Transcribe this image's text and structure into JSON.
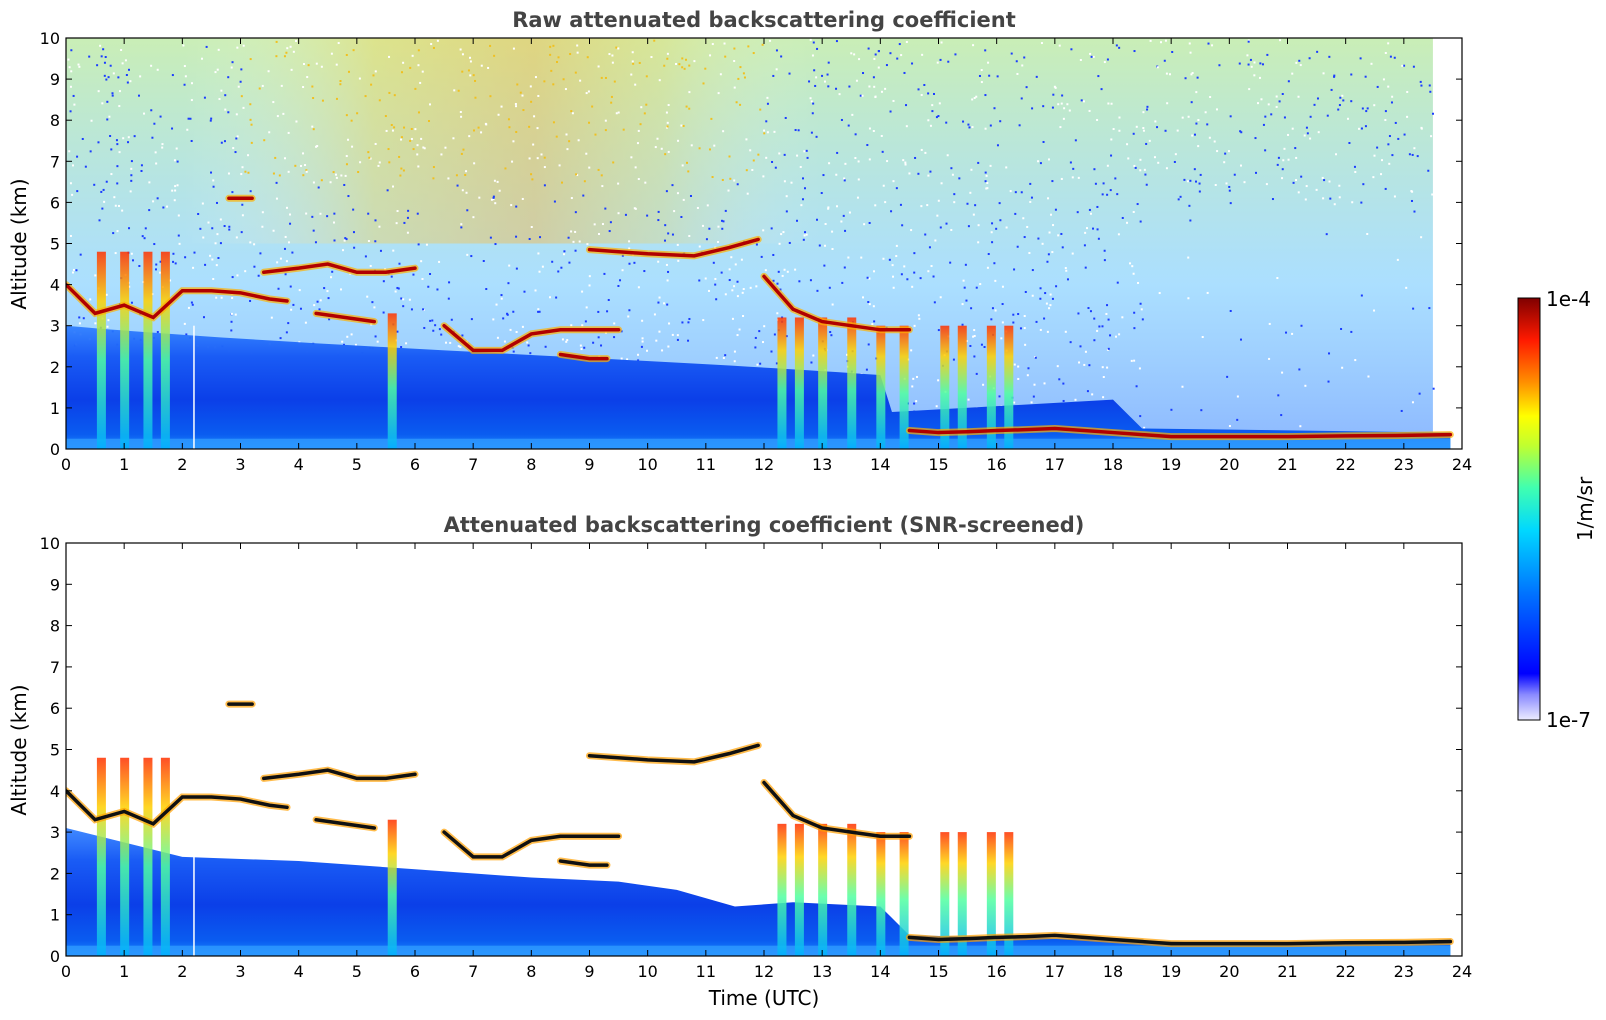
{
  "chart_data": [
    {
      "type": "heatmap",
      "title": "Raw attenuated backscattering coefficient",
      "xlabel": "",
      "ylabel": "Altitude (km)",
      "xlim": [
        0,
        24
      ],
      "ylim": [
        0,
        10
      ],
      "xticks": [
        "0",
        "1",
        "2",
        "3",
        "4",
        "5",
        "6",
        "7",
        "8",
        "9",
        "10",
        "11",
        "12",
        "13",
        "14",
        "15",
        "16",
        "17",
        "18",
        "19",
        "20",
        "21",
        "22",
        "23",
        "24"
      ],
      "yticks": [
        "0",
        "1",
        "2",
        "3",
        "4",
        "5",
        "6",
        "7",
        "8",
        "9",
        "10"
      ],
      "screened": false,
      "layers": [
        {
          "x": [
            0.0,
            0.5,
            1.0,
            1.5,
            2.0,
            2.5,
            3.0,
            3.5,
            3.8
          ],
          "y": [
            4.0,
            3.3,
            3.5,
            3.2,
            3.85,
            3.85,
            3.8,
            3.65,
            3.6
          ]
        },
        {
          "x": [
            3.4,
            4.0,
            4.5,
            5.0,
            5.5,
            6.0
          ],
          "y": [
            4.3,
            4.4,
            4.5,
            4.3,
            4.3,
            4.4
          ]
        },
        {
          "x": [
            4.3,
            4.8,
            5.3
          ],
          "y": [
            3.3,
            3.2,
            3.1
          ]
        },
        {
          "x": [
            6.5,
            7.0,
            7.5,
            8.0,
            8.5,
            9.0,
            9.5
          ],
          "y": [
            3.0,
            2.4,
            2.4,
            2.8,
            2.9,
            2.9,
            2.9
          ]
        },
        {
          "x": [
            8.5,
            9.0,
            9.3
          ],
          "y": [
            2.3,
            2.2,
            2.2
          ]
        },
        {
          "x": [
            2.8,
            3.2
          ],
          "y": [
            6.1,
            6.1
          ]
        },
        {
          "x": [
            9.0,
            10.0,
            10.8,
            11.4,
            11.9
          ],
          "y": [
            4.85,
            4.75,
            4.7,
            4.9,
            5.1
          ]
        },
        {
          "x": [
            12.0,
            12.5,
            13.0,
            13.5,
            14.0,
            14.5
          ],
          "y": [
            4.2,
            3.4,
            3.1,
            3.0,
            2.9,
            2.9
          ]
        },
        {
          "x": [
            14.5,
            15.0,
            15.5,
            16.0,
            16.5,
            17.0,
            17.5,
            18.0,
            18.5,
            19.0,
            19.5,
            20.0,
            21.0,
            22.0,
            23.0,
            23.8
          ],
          "y": [
            0.45,
            0.4,
            0.42,
            0.45,
            0.47,
            0.5,
            0.45,
            0.4,
            0.35,
            0.3,
            0.3,
            0.3,
            0.3,
            0.32,
            0.33,
            0.35
          ]
        }
      ],
      "columns": [
        0.6,
        1.0,
        1.4,
        1.7,
        5.6,
        12.3,
        12.6,
        13.0,
        13.5,
        14.0,
        14.4,
        15.1,
        15.4,
        15.9,
        16.2
      ],
      "boundary_layer_top_km": 3.0,
      "raw_signal_end_hour": 23.5
    },
    {
      "type": "heatmap",
      "title": "Attenuated backscattering coefficient (SNR-screened)",
      "xlabel": "Time (UTC)",
      "ylabel": "Altitude (km)",
      "xlim": [
        0,
        24
      ],
      "ylim": [
        0,
        10
      ],
      "xticks": [
        "0",
        "1",
        "2",
        "3",
        "4",
        "5",
        "6",
        "7",
        "8",
        "9",
        "10",
        "11",
        "12",
        "13",
        "14",
        "15",
        "16",
        "17",
        "18",
        "19",
        "20",
        "21",
        "22",
        "23",
        "24"
      ],
      "yticks": [
        "0",
        "1",
        "2",
        "3",
        "4",
        "5",
        "6",
        "7",
        "8",
        "9",
        "10"
      ],
      "screened": true,
      "bl_top_km": [
        {
          "x": 0.0,
          "y": 3.1
        },
        {
          "x": 2.0,
          "y": 2.4
        },
        {
          "x": 4.0,
          "y": 2.3
        },
        {
          "x": 6.0,
          "y": 2.1
        },
        {
          "x": 8.0,
          "y": 1.9
        },
        {
          "x": 9.5,
          "y": 1.8
        },
        {
          "x": 10.5,
          "y": 1.6
        },
        {
          "x": 11.5,
          "y": 1.2
        },
        {
          "x": 12.5,
          "y": 1.3
        },
        {
          "x": 14.0,
          "y": 1.2
        },
        {
          "x": 14.5,
          "y": 0.5
        },
        {
          "x": 18.0,
          "y": 0.4
        },
        {
          "x": 20.0,
          "y": 0.3
        },
        {
          "x": 23.8,
          "y": 0.35
        }
      ]
    }
  ],
  "colorbar": {
    "label": "1/m/sr",
    "max_label": "1e-4",
    "min_label": "1e-7",
    "scale": "log",
    "colormap": "jet"
  },
  "colors": {
    "title": "#444444",
    "axis": "#000000",
    "background": "#ffffff"
  }
}
